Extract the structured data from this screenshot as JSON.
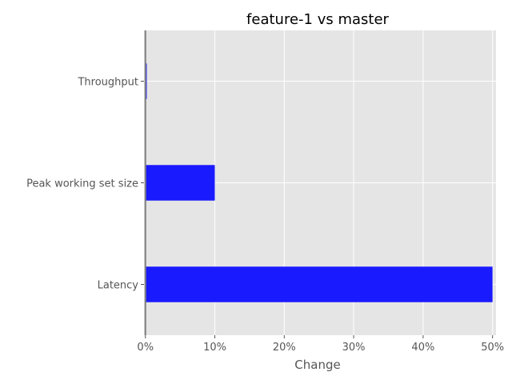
{
  "chart_data": {
    "type": "bar",
    "orientation": "horizontal",
    "title": "feature-1 vs master",
    "xlabel": "Change",
    "ylabel": "",
    "categories": [
      "Throughput",
      "Peak working set size",
      "Latency"
    ],
    "values": [
      0.2,
      10,
      50
    ],
    "xlim": [
      -0.2,
      50.5
    ],
    "x_ticks": [
      0,
      10,
      20,
      30,
      40,
      50
    ],
    "x_tick_labels": [
      "0%",
      "10%",
      "20%",
      "30%",
      "40%",
      "50%"
    ],
    "grid": true,
    "bar_color": "#1a1aff",
    "plot_background": "#e5e5e5",
    "grid_color": "#ffffff",
    "zero_line_color": "#808080"
  }
}
